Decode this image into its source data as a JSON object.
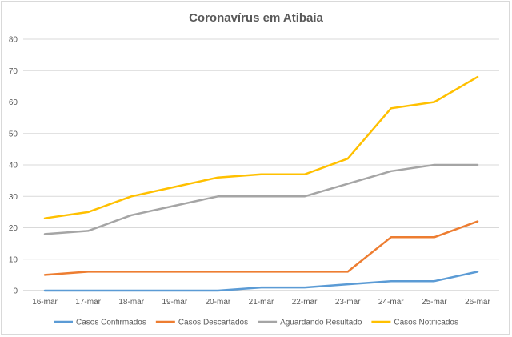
{
  "chart_data": {
    "type": "line",
    "title": "Coronavírus em Atibaia",
    "xlabel": "",
    "ylabel": "",
    "ylim": [
      0,
      80
    ],
    "yticks": [
      0,
      10,
      20,
      30,
      40,
      50,
      60,
      70,
      80
    ],
    "grid": true,
    "legend_position": "bottom",
    "categories": [
      "16-mar",
      "17-mar",
      "18-mar",
      "19-mar",
      "20-mar",
      "21-mar",
      "22-mar",
      "23-mar",
      "24-mar",
      "25-mar",
      "26-mar"
    ],
    "series": [
      {
        "name": "Casos Confirmados",
        "color": "#5b9bd5",
        "values": [
          0,
          0,
          0,
          0,
          0,
          1,
          1,
          2,
          3,
          3,
          6
        ]
      },
      {
        "name": "Casos Descartados",
        "color": "#ed7d31",
        "values": [
          5,
          6,
          6,
          6,
          6,
          6,
          6,
          6,
          17,
          17,
          22
        ]
      },
      {
        "name": "Aguardando Resultado",
        "color": "#a5a5a5",
        "values": [
          18,
          19,
          24,
          27,
          30,
          30,
          30,
          34,
          38,
          40,
          40
        ]
      },
      {
        "name": "Casos Notificados",
        "color": "#ffc000",
        "values": [
          23,
          25,
          30,
          33,
          36,
          37,
          37,
          42,
          58,
          60,
          68
        ]
      }
    ]
  }
}
